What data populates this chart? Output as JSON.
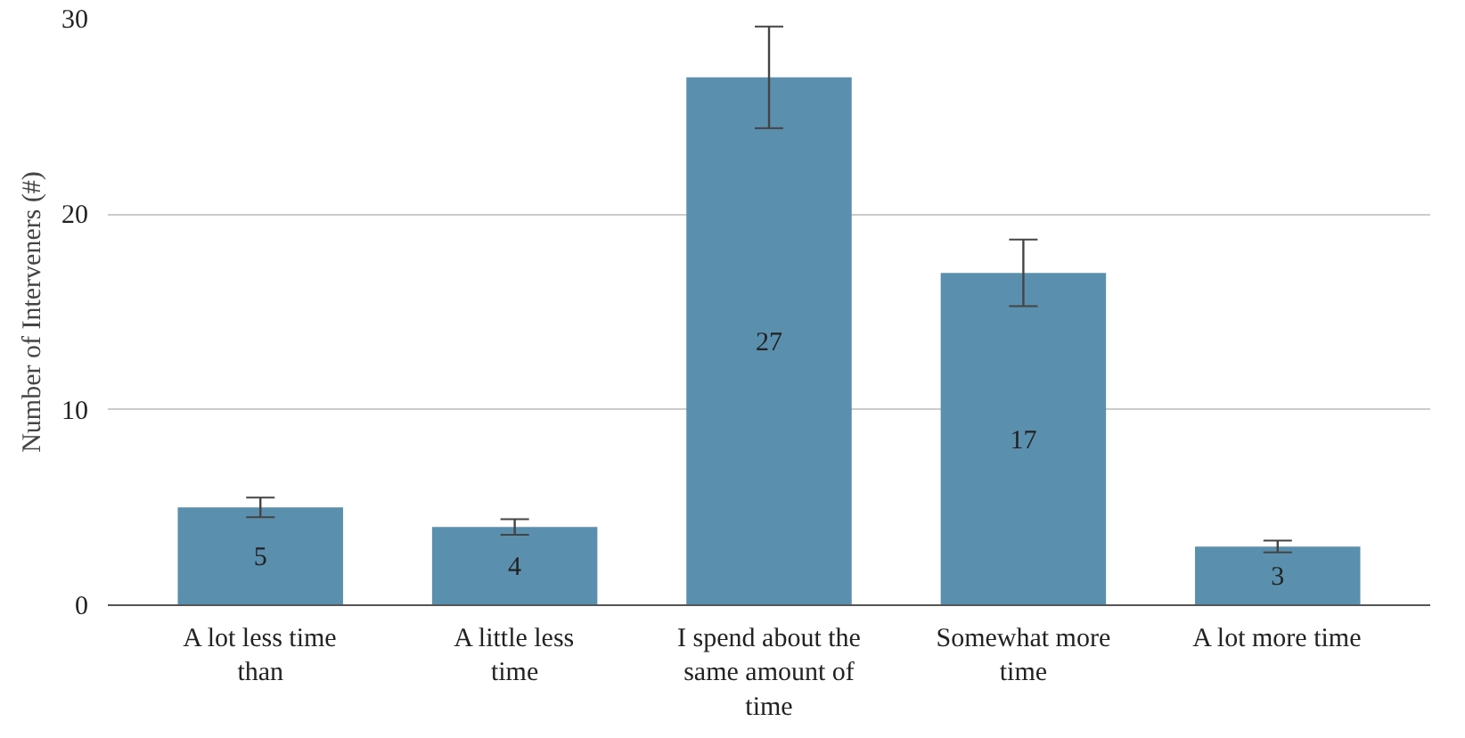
{
  "chart_data": {
    "type": "bar",
    "ylabel": "Number of Interveners (#)",
    "categories": [
      "A lot less time than",
      "A little less time",
      "I spend about the same amount of time",
      "Somewhat more time",
      "A lot more time"
    ],
    "values": [
      5,
      4,
      27,
      17,
      3
    ],
    "errors": [
      0.5,
      0.4,
      2.6,
      1.7,
      0.3
    ],
    "color": "#5a8fae",
    "ylim": [
      0,
      30
    ],
    "yticks": [
      0,
      10,
      20,
      30
    ],
    "grid": "y",
    "data_labels": true
  }
}
